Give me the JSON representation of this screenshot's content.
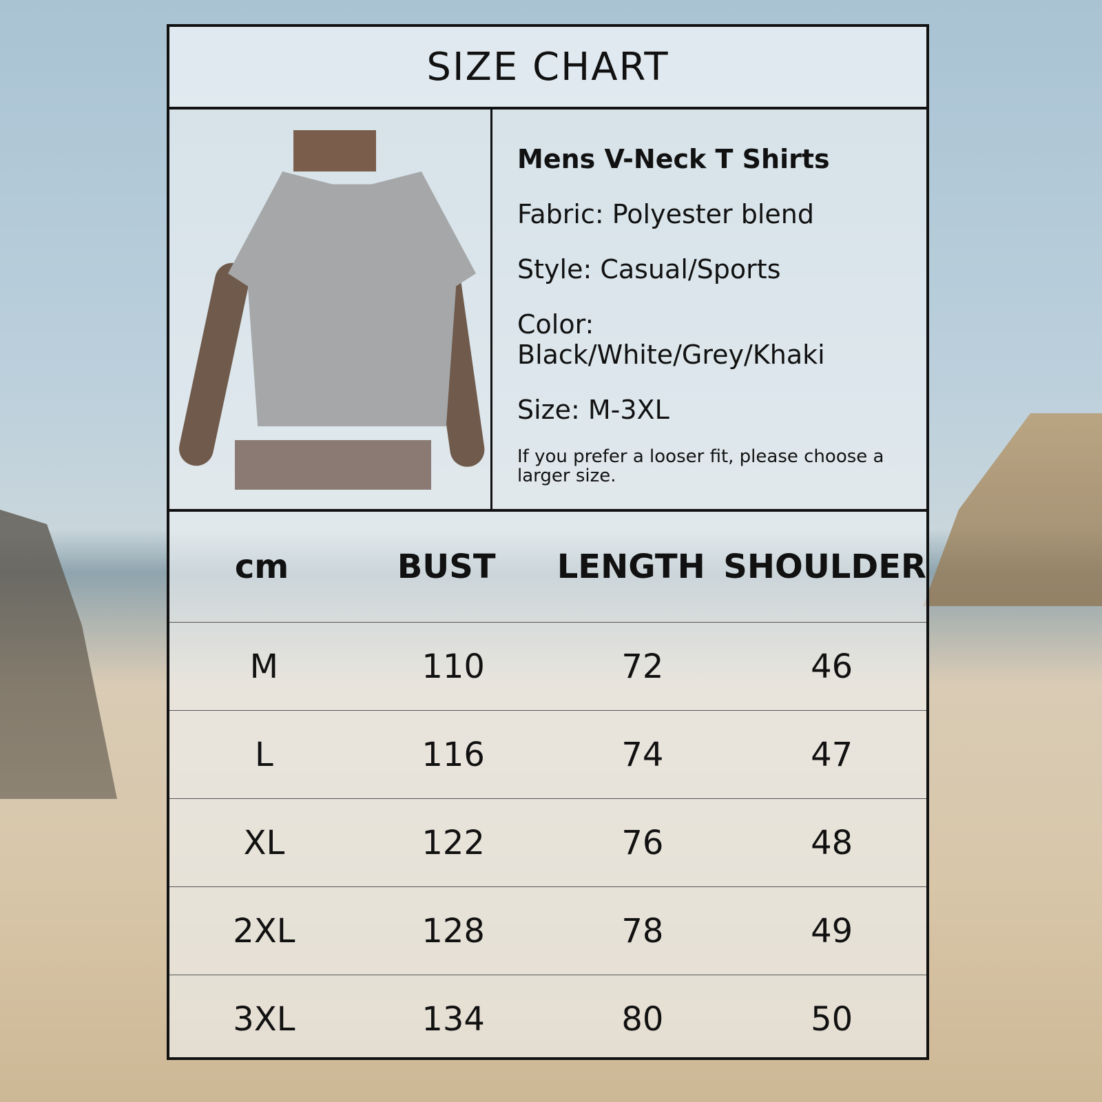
{
  "title": "SIZE CHART",
  "product": {
    "name": "Mens V-Neck T Shirts",
    "fabric": "Fabric: Polyester blend",
    "style": "Style: Casual/Sports",
    "color": "Color: Black/White/Grey/Khaki",
    "size": "Size: M-3XL",
    "note": "If you prefer a looser fit, please choose a larger size."
  },
  "table": {
    "headers": [
      "cm",
      "BUST",
      "LENGTH",
      "SHOULDER"
    ],
    "rows": [
      [
        "M",
        "110",
        "72",
        "46"
      ],
      [
        "L",
        "116",
        "74",
        "47"
      ],
      [
        "XL",
        "122",
        "76",
        "48"
      ],
      [
        "2XL",
        "128",
        "78",
        "49"
      ],
      [
        "3XL",
        "134",
        "80",
        "50"
      ]
    ]
  }
}
